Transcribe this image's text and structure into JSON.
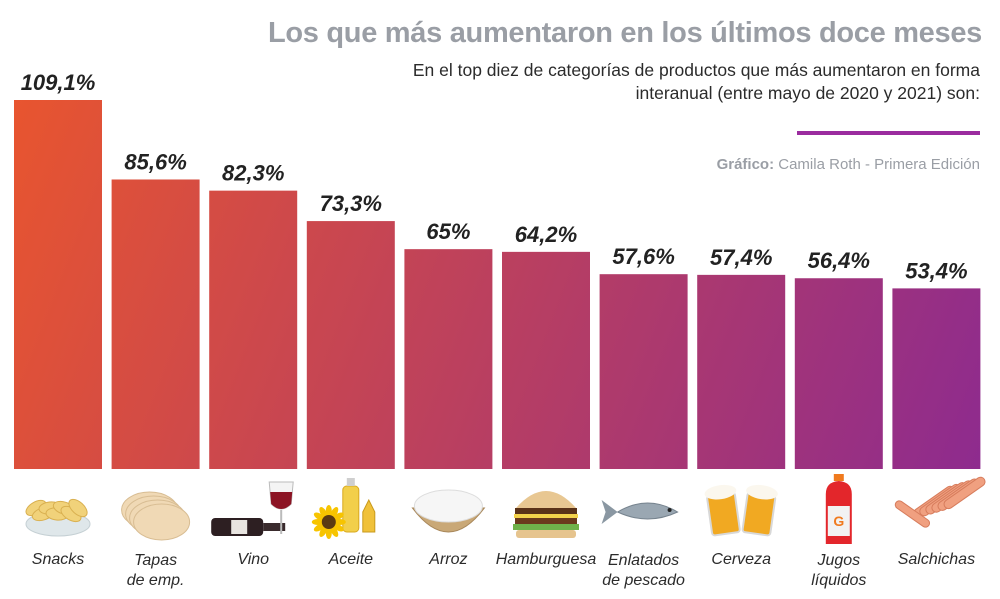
{
  "header": {
    "title": "Los que más aumentaron en los últimos doce meses",
    "subtitle": "En el top diez de categorías de productos que más aumentaron en forma interanual (entre mayo de 2020 y 2021) son:",
    "credit_label": "Gráfico:",
    "credit_text": " Camila Roth - Primera Edición",
    "accent_color": "#9b2c9f"
  },
  "colors": {
    "gradient_start": "#e8552f",
    "gradient_end": "#8e2b8e",
    "value_label": "#222222"
  },
  "chart_data": {
    "type": "bar",
    "title": "Los que más aumentaron en los últimos doce meses",
    "xlabel": "",
    "ylabel": "",
    "ylim": [
      0,
      109.1
    ],
    "grid": false,
    "legend": "none",
    "categories": [
      "Snacks",
      "Tapas de emp.",
      "Vino",
      "Aceite",
      "Arroz",
      "Hamburguesa",
      "Enlatados de pescado",
      "Cerveza",
      "Jugos líquidos",
      "Salchichas"
    ],
    "category_lines": [
      [
        "Snacks"
      ],
      [
        "Tapas",
        "de emp."
      ],
      [
        "Vino"
      ],
      [
        "Aceite"
      ],
      [
        "Arroz"
      ],
      [
        "Hamburguesa"
      ],
      [
        "Enlatados",
        "de pescado"
      ],
      [
        "Cerveza"
      ],
      [
        "Jugos",
        "líquidos"
      ],
      [
        "Salchichas"
      ]
    ],
    "icons": [
      "chips-bowl-icon",
      "empanada-wrappers-icon",
      "wine-bottle-glass-icon",
      "oil-bottles-sunflower-icon",
      "rice-bowl-icon",
      "hamburger-icon",
      "fish-icon",
      "beer-mugs-icon",
      "sports-drink-bottle-icon",
      "sausages-icon"
    ],
    "values": [
      109.1,
      85.6,
      82.3,
      73.3,
      65,
      64.2,
      57.6,
      57.4,
      56.4,
      53.4
    ],
    "value_labels": [
      "109,1%",
      "85,6%",
      "82,3%",
      "73,3%",
      "65%",
      "64,2%",
      "57,6%",
      "57,4%",
      "56,4%",
      "53,4%"
    ]
  }
}
